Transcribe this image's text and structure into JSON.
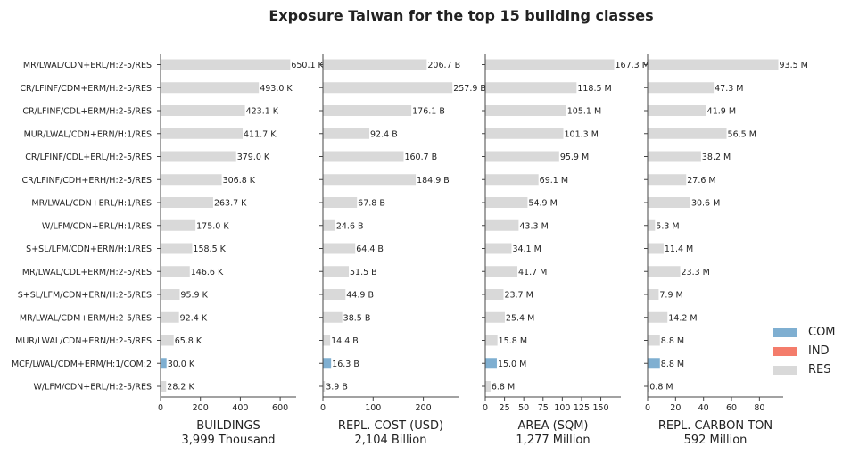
{
  "title": "Exposure Taiwan for the top 15 building classes",
  "colors": {
    "COM": "#7fafd1",
    "IND": "#f47c6b",
    "RES": "#d9d9d9"
  },
  "legend": [
    {
      "label": "COM",
      "color": "#7fafd1"
    },
    {
      "label": "IND",
      "color": "#f47c6b"
    },
    {
      "label": "RES",
      "color": "#d9d9d9"
    }
  ],
  "chart_data": {
    "type": "bar",
    "orientation": "horizontal",
    "title": "Exposure Taiwan for the top 15 building classes",
    "categories": [
      "MR/LWAL/CDN+ERL/H:2-5/RES",
      "CR/LFINF/CDM+ERM/H:2-5/RES",
      "CR/LFINF/CDL+ERM/H:2-5/RES",
      "MUR/LWAL/CDN+ERN/H:1/RES",
      "CR/LFINF/CDL+ERL/H:2-5/RES",
      "CR/LFINF/CDH+ERH/H:2-5/RES",
      "MR/LWAL/CDN+ERL/H:1/RES",
      "W/LFM/CDN+ERL/H:1/RES",
      "S+SL/LFM/CDN+ERN/H:1/RES",
      "MR/LWAL/CDL+ERM/H:2-5/RES",
      "S+SL/LFM/CDN+ERN/H:2-5/RES",
      "MR/LWAL/CDM+ERM/H:2-5/RES",
      "MUR/LWAL/CDN+ERN/H:2-5/RES",
      "MCF/LWAL/CDM+ERM/H:1/COM:2",
      "W/LFM/CDN+ERL/H:2-5/RES"
    ],
    "occupancy": [
      "RES",
      "RES",
      "RES",
      "RES",
      "RES",
      "RES",
      "RES",
      "RES",
      "RES",
      "RES",
      "RES",
      "RES",
      "RES",
      "COM",
      "RES"
    ],
    "panels": [
      {
        "xlabel": "BUILDINGS",
        "total": "3,999 Thousand",
        "xlim": [
          0,
          680
        ],
        "ticks": [
          0,
          200,
          400,
          600
        ],
        "values": [
          650.1,
          493.0,
          423.1,
          411.7,
          379.0,
          306.8,
          263.7,
          175.0,
          158.5,
          146.6,
          95.9,
          92.4,
          65.8,
          30.0,
          28.2
        ],
        "labels": [
          "650.1 K",
          "493.0 K",
          "423.1 K",
          "411.7 K",
          "379.0 K",
          "306.8 K",
          "263.7 K",
          "175.0 K",
          "158.5 K",
          "146.6 K",
          "95.9 K",
          "92.4 K",
          "65.8 K",
          "30.0 K",
          "28.2 K"
        ]
      },
      {
        "xlabel": "REPL. COST (USD)",
        "total": "2,104 Billion",
        "xlim": [
          0,
          270
        ],
        "ticks": [
          0,
          100,
          200
        ],
        "values": [
          206.7,
          257.9,
          176.1,
          92.4,
          160.7,
          184.9,
          67.8,
          24.6,
          64.4,
          51.5,
          44.9,
          38.5,
          14.4,
          16.3,
          3.9
        ],
        "labels": [
          "206.7 B",
          "257.9 B",
          "176.1 B",
          "92.4 B",
          "160.7 B",
          "184.9 B",
          "67.8 B",
          "24.6 B",
          "64.4 B",
          "51.5 B",
          "44.9 B",
          "38.5 B",
          "14.4 B",
          "16.3 B",
          "3.9 B"
        ]
      },
      {
        "xlabel": "AREA (SQM)",
        "total": "1,277 Million",
        "xlim": [
          0,
          176
        ],
        "ticks": [
          0,
          25,
          50,
          75,
          100,
          125,
          150
        ],
        "values": [
          167.3,
          118.5,
          105.1,
          101.3,
          95.9,
          69.1,
          54.9,
          43.3,
          34.1,
          41.7,
          23.7,
          25.4,
          15.8,
          15.0,
          6.8
        ],
        "labels": [
          "167.3 M",
          "118.5 M",
          "105.1 M",
          "101.3 M",
          "95.9 M",
          "69.1 M",
          "54.9 M",
          "43.3 M",
          "34.1 M",
          "41.7 M",
          "23.7 M",
          "25.4 M",
          "15.8 M",
          "15.0 M",
          "6.8 M"
        ]
      },
      {
        "xlabel": "REPL. CARBON TON",
        "total": "592 Million",
        "xlim": [
          0,
          97
        ],
        "ticks": [
          0,
          20,
          40,
          60,
          80
        ],
        "values": [
          93.5,
          47.3,
          41.9,
          56.5,
          38.2,
          27.6,
          30.6,
          5.3,
          11.4,
          23.3,
          7.9,
          14.2,
          8.8,
          8.8,
          0.8
        ],
        "labels": [
          "93.5 M",
          "47.3 M",
          "41.9 M",
          "56.5 M",
          "38.2 M",
          "27.6 M",
          "30.6 M",
          "5.3 M",
          "11.4 M",
          "23.3 M",
          "7.9 M",
          "14.2 M",
          "8.8 M",
          "8.8 M",
          "0.8 M"
        ]
      }
    ]
  }
}
